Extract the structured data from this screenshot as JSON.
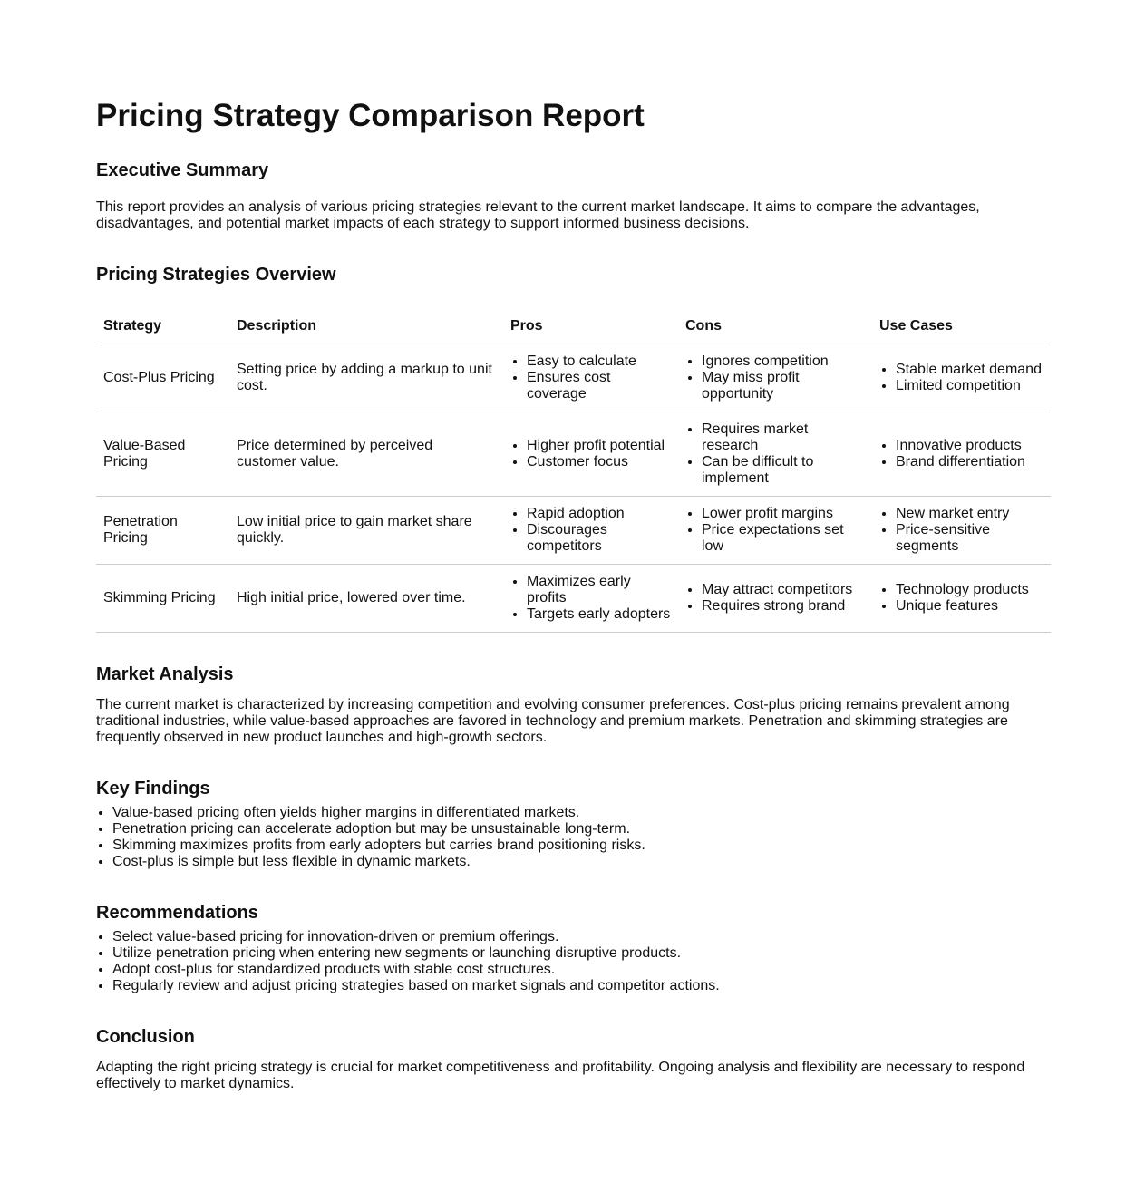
{
  "title": "Pricing Strategy Comparison Report",
  "executive_summary": {
    "heading": "Executive Summary",
    "text": "This report provides an analysis of various pricing strategies relevant to the current market landscape. It aims to compare the advantages, disadvantages, and potential market impacts of each strategy to support informed business decisions."
  },
  "overview": {
    "heading": "Pricing Strategies Overview",
    "columns": [
      "Strategy",
      "Description",
      "Pros",
      "Cons",
      "Use Cases"
    ],
    "rows": [
      {
        "strategy": "Cost-Plus Pricing",
        "description": "Setting price by adding a markup to unit cost.",
        "pros": [
          "Easy to calculate",
          "Ensures cost coverage"
        ],
        "cons": [
          "Ignores competition",
          "May miss profit opportunity"
        ],
        "use_cases": [
          "Stable market demand",
          "Limited competition"
        ]
      },
      {
        "strategy": "Value-Based Pricing",
        "description": "Price determined by perceived customer value.",
        "pros": [
          "Higher profit potential",
          "Customer focus"
        ],
        "cons": [
          "Requires market research",
          "Can be difficult to implement"
        ],
        "use_cases": [
          "Innovative products",
          "Brand differentiation"
        ]
      },
      {
        "strategy": "Penetration Pricing",
        "description": "Low initial price to gain market share quickly.",
        "pros": [
          "Rapid adoption",
          "Discourages competitors"
        ],
        "cons": [
          "Lower profit margins",
          "Price expectations set low"
        ],
        "use_cases": [
          "New market entry",
          "Price-sensitive segments"
        ]
      },
      {
        "strategy": "Skimming Pricing",
        "description": "High initial price, lowered over time.",
        "pros": [
          "Maximizes early profits",
          "Targets early adopters"
        ],
        "cons": [
          "May attract competitors",
          "Requires strong brand"
        ],
        "use_cases": [
          "Technology products",
          "Unique features"
        ]
      }
    ]
  },
  "market_analysis": {
    "heading": "Market Analysis",
    "text": "The current market is characterized by increasing competition and evolving consumer preferences. Cost-plus pricing remains prevalent among traditional industries, while value-based approaches are favored in technology and premium markets. Penetration and skimming strategies are frequently observed in new product launches and high-growth sectors."
  },
  "key_findings": {
    "heading": "Key Findings",
    "items": [
      "Value-based pricing often yields higher margins in differentiated markets.",
      "Penetration pricing can accelerate adoption but may be unsustainable long-term.",
      "Skimming maximizes profits from early adopters but carries brand positioning risks.",
      "Cost-plus is simple but less flexible in dynamic markets."
    ]
  },
  "recommendations": {
    "heading": "Recommendations",
    "items": [
      "Select value-based pricing for innovation-driven or premium offerings.",
      "Utilize penetration pricing when entering new segments or launching disruptive products.",
      "Adopt cost-plus for standardized products with stable cost structures.",
      "Regularly review and adjust pricing strategies based on market signals and competitor actions."
    ]
  },
  "conclusion": {
    "heading": "Conclusion",
    "text": "Adapting the right pricing strategy is crucial for market competitiveness and profitability. Ongoing analysis and flexibility are necessary to respond effectively to market dynamics."
  }
}
